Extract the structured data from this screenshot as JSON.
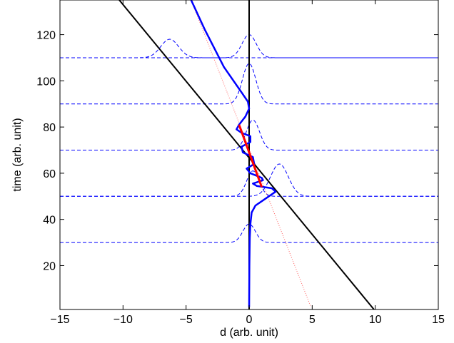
{
  "chart_data": {
    "type": "line",
    "title": "",
    "xlabel": "d (arb. unit)",
    "ylabel": "time (arb. unit)",
    "xlim": [
      -15,
      15
    ],
    "ylim": [
      1,
      135
    ],
    "grid": false,
    "legend": "none",
    "x_ticks": [
      -15,
      -10,
      -5,
      0,
      5,
      10,
      15
    ],
    "x_tick_labels": [
      "−15",
      "−10",
      "−5",
      "0",
      "5",
      "10",
      "15"
    ],
    "y_ticks": [
      20,
      40,
      60,
      80,
      100,
      120
    ],
    "y_tick_labels": [
      "20",
      "40",
      "60",
      "80",
      "100",
      "120"
    ],
    "colors": {
      "vertical_line": "#000000",
      "diagonal_line": "#000000",
      "dotted_line": "#ff6666",
      "trajectory": "#0000ff",
      "dashed_packets": "#0000ff",
      "red_segment": "#ff0000"
    },
    "series": [
      {
        "style": "solid-black",
        "x": [
          0,
          0
        ],
        "y": [
          1,
          135
        ]
      },
      {
        "style": "solid-black",
        "x": [
          -10.3,
          9.9
        ],
        "y": [
          135,
          1
        ]
      },
      {
        "style": "dotted-red",
        "x": [
          -4.6,
          4.9
        ],
        "y": [
          135,
          2
        ]
      },
      {
        "style": "thick-red",
        "x": [
          -0.8,
          1.0
        ],
        "y": [
          81,
          54
        ]
      },
      {
        "style": "solid-blue",
        "x": [
          -4.6,
          -3.5,
          -2.0,
          -0.6,
          -0.1,
          0.0,
          -0.3,
          -0.8,
          -1.0,
          -0.6,
          0.1,
          0.1,
          -0.6,
          -0.5,
          0.3,
          0.4,
          -0.2,
          0.1,
          1.0,
          1.1,
          0.3,
          0.6,
          1.8,
          2.1,
          1.3,
          0.5,
          0.2,
          0.1,
          0.05,
          0.02,
          0.0
        ],
        "y": [
          135,
          122,
          106,
          95,
          91,
          88,
          84.5,
          81,
          79,
          77.5,
          76,
          73.5,
          71.5,
          69,
          67,
          64,
          62,
          60,
          58,
          57,
          55.5,
          54.5,
          53.5,
          52,
          49,
          46,
          43,
          38,
          32,
          20,
          2
        ]
      },
      {
        "style": "dashed-blue",
        "baseline": 30,
        "center": 0.0,
        "amplitude": 8.0,
        "width": 0.7
      },
      {
        "style": "dashed-blue",
        "baseline": 50,
        "center": 0.3,
        "amplitude": 11.0,
        "width": 0.7
      },
      {
        "style": "dashed-blue",
        "baseline": 50,
        "center": 2.4,
        "amplitude": 14.0,
        "width": 1.0
      },
      {
        "style": "dashed-blue",
        "baseline": 70,
        "center": 0.3,
        "amplitude": 13.0,
        "width": 0.75
      },
      {
        "style": "dashed-blue",
        "baseline": 90,
        "center": 0.0,
        "amplitude": 17.5,
        "width": 0.75
      },
      {
        "style": "dashed-blue",
        "baseline": 110,
        "center": 0.0,
        "amplitude": 10.0,
        "width": 0.8
      },
      {
        "style": "dashed-blue",
        "baseline": 110,
        "center": -6.3,
        "amplitude": 8.0,
        "width": 1.0
      }
    ]
  }
}
